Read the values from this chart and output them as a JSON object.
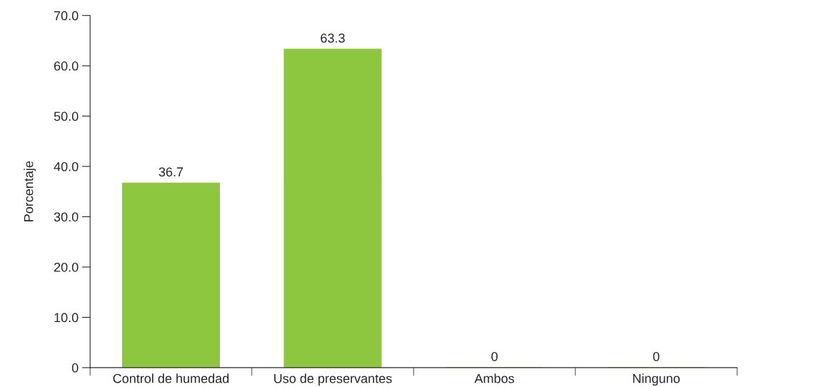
{
  "chart_data": {
    "type": "bar",
    "ylabel": "Porcentaje",
    "categories": [
      "Control de humedad",
      "Uso de preservantes",
      "Ambos",
      "Ninguno"
    ],
    "values": [
      36.7,
      63.3,
      0,
      0
    ],
    "color": "#8dc63f",
    "ylim": [
      0,
      70
    ],
    "yticks": [
      0,
      {
        "value": 10,
        "label": "10.0"
      },
      {
        "value": 20,
        "label": "20.0"
      },
      {
        "value": 30,
        "label": "30.0"
      },
      {
        "value": 40,
        "label": "40.0"
      },
      {
        "value": 50,
        "label": "50.0"
      },
      {
        "value": 60,
        "label": "60.0"
      },
      {
        "value": 70,
        "label": "70.0"
      }
    ],
    "data_labels": true,
    "grid": false,
    "legend": false
  }
}
